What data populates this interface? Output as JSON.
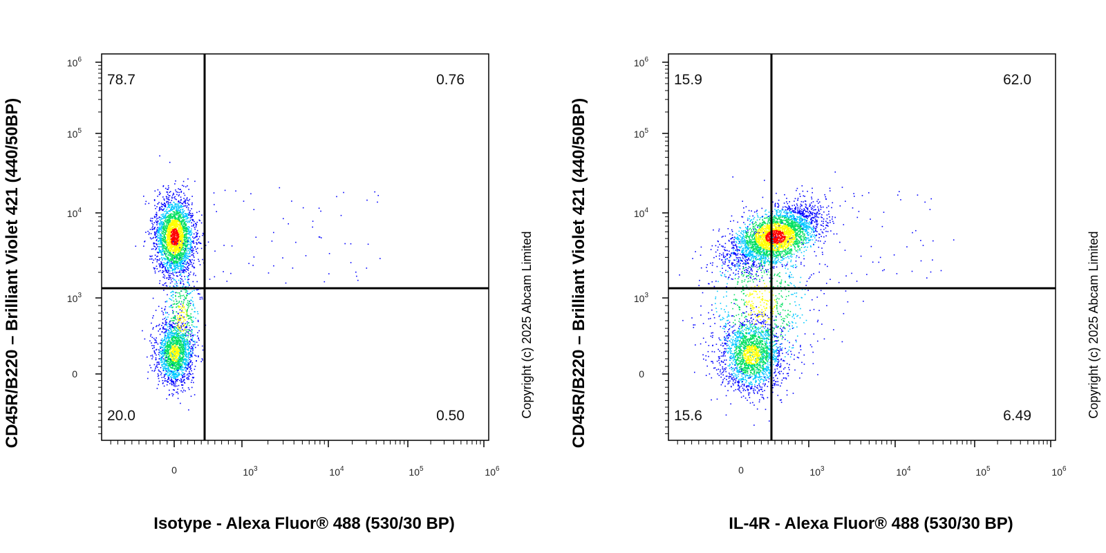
{
  "chart_data": [
    {
      "type": "scatter",
      "subtype": "flow-cytometry-quadrant-density",
      "xlabel": "Isotype - Alexa Fluor® 488 (530/30 BP)",
      "ylabel": "CD45R/B220 – Brilliant Violet 421 (440/50BP)",
      "x_scale": "biexponential",
      "y_scale": "biexponential",
      "x_ticks": [
        "0",
        "10^3",
        "10^4",
        "10^5",
        "10^6"
      ],
      "y_ticks": [
        "0",
        "10^3",
        "10^4",
        "10^5",
        "10^6"
      ],
      "gate": {
        "x": 320,
        "y": 1300
      },
      "quadrants": {
        "upper_left": "78.7",
        "upper_right": "0.76",
        "lower_left": "20.0",
        "lower_right": "0.50"
      },
      "populations": [
        {
          "name": "",
          "center": {
            "x": 0,
            "y": 5500
          }
        },
        {
          "name": "",
          "center": {
            "x": 0,
            "y": 280
          }
        }
      ],
      "copyright": "Copyright (c) 2025 Abcam Limited"
    },
    {
      "type": "scatter",
      "subtype": "flow-cytometry-quadrant-density",
      "xlabel": "IL-4R - Alexa Fluor® 488 (530/30 BP)",
      "ylabel": "CD45R/B220 – Brilliant Violet 421 (440/50BP)",
      "x_scale": "biexponential",
      "y_scale": "biexponential",
      "x_ticks": [
        "0",
        "10^3",
        "10^4",
        "10^5",
        "10^6"
      ],
      "y_ticks": [
        "0",
        "10^3",
        "10^4",
        "10^5",
        "10^6"
      ],
      "gate": {
        "x": 320,
        "y": 1300
      },
      "quadrants": {
        "upper_left": "15.9",
        "upper_right": "62.0",
        "lower_left": "15.6",
        "lower_right": "6.49"
      },
      "populations": [
        {
          "name": "",
          "center": {
            "x": 500,
            "y": 5500
          }
        },
        {
          "name": "",
          "center": {
            "x": 150,
            "y": 260
          }
        }
      ],
      "copyright": "Copyright (c) 2025 Abcam Limited"
    }
  ],
  "colors": {
    "density_low": "#0000ff",
    "density_mid_low": "#00c8ff",
    "density_mid": "#00e060",
    "density_mid_high": "#ffff00",
    "density_high": "#ff0000",
    "axis": "#000000",
    "background": "#ffffff"
  }
}
